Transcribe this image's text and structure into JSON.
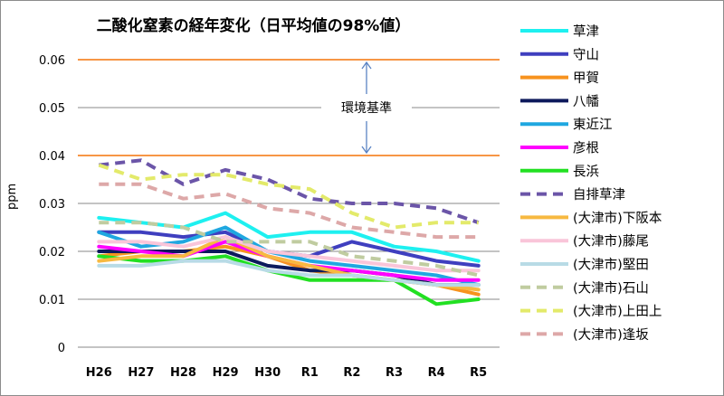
{
  "chart_data": {
    "type": "line",
    "title": "二酸化窒素の経年変化（日平均値の98%値）",
    "ylabel": "ppm",
    "ylim": [
      0,
      0.06
    ],
    "yticks": [
      "0",
      "0.01",
      "0.02",
      "0.03",
      "0.04",
      "0.05",
      "0.06"
    ],
    "ytick_values": [
      0,
      0.01,
      0.02,
      0.03,
      0.04,
      0.05,
      0.06
    ],
    "categories": [
      "H26",
      "H27",
      "H28",
      "H29",
      "H30",
      "R1",
      "R2",
      "R3",
      "R4",
      "R5"
    ],
    "grid": true,
    "legend": "right",
    "annotation": {
      "label": "環境基準",
      "range": [
        0.04,
        0.06
      ],
      "color": "#f79646"
    },
    "series": [
      {
        "name": "草津",
        "color": "#1ef0f0",
        "style": "solid",
        "values": [
          0.027,
          0.026,
          0.025,
          0.028,
          0.023,
          0.024,
          0.024,
          0.021,
          0.02,
          0.018
        ]
      },
      {
        "name": "守山",
        "color": "#3f3fbf",
        "style": "solid",
        "values": [
          0.024,
          0.024,
          0.023,
          0.024,
          0.02,
          0.019,
          0.022,
          0.02,
          0.018,
          0.017
        ]
      },
      {
        "name": "甲賀",
        "color": "#f7931e",
        "style": "solid",
        "values": [
          0.019,
          0.02,
          0.02,
          0.021,
          0.019,
          0.016,
          0.015,
          0.014,
          0.013,
          0.011
        ]
      },
      {
        "name": "八幡",
        "color": "#0d1a5c",
        "style": "solid",
        "values": [
          0.02,
          0.02,
          0.02,
          0.02,
          0.017,
          0.016,
          0.016,
          0.015,
          0.013,
          0.013
        ]
      },
      {
        "name": "東近江",
        "color": "#1fa7e0",
        "style": "solid",
        "values": [
          0.024,
          0.021,
          0.022,
          0.025,
          0.02,
          0.018,
          0.017,
          0.016,
          0.015,
          0.013
        ]
      },
      {
        "name": "彦根",
        "color": "#ff00ff",
        "style": "solid",
        "values": [
          0.021,
          0.02,
          0.019,
          0.022,
          0.019,
          0.017,
          0.016,
          0.015,
          0.014,
          0.014
        ]
      },
      {
        "name": "長浜",
        "color": "#22e022",
        "style": "solid",
        "values": [
          0.019,
          0.018,
          0.018,
          0.019,
          0.016,
          0.014,
          0.014,
          0.014,
          0.009,
          0.01
        ]
      },
      {
        "name": "自排草津",
        "color": "#6b55a8",
        "style": "dash",
        "values": [
          0.038,
          0.039,
          0.034,
          0.037,
          0.035,
          0.031,
          0.03,
          0.03,
          0.029,
          0.026
        ]
      },
      {
        "name": "(大津市)下阪本",
        "color": "#f7b940",
        "style": "solid",
        "values": [
          0.018,
          0.019,
          0.019,
          0.023,
          0.019,
          0.017,
          0.015,
          0.014,
          0.013,
          0.012
        ]
      },
      {
        "name": "(大津市)藤尾",
        "color": "#f9c5d9",
        "style": "solid",
        "values": [
          0.022,
          0.022,
          0.021,
          0.023,
          0.02,
          0.019,
          0.018,
          0.017,
          0.016,
          0.016
        ]
      },
      {
        "name": "(大津市)堅田",
        "color": "#b8dbe6",
        "style": "solid",
        "values": [
          0.017,
          0.017,
          0.018,
          0.018,
          0.016,
          0.015,
          0.015,
          0.014,
          0.013,
          0.013
        ]
      },
      {
        "name": "(大津市)石山",
        "color": "#c0cca0",
        "style": "dash",
        "values": [
          0.026,
          0.026,
          0.025,
          0.022,
          0.022,
          0.022,
          0.019,
          0.018,
          0.017,
          0.015
        ]
      },
      {
        "name": "(大津市)上田上",
        "color": "#e3ea6a",
        "style": "dash",
        "values": [
          0.038,
          0.035,
          0.036,
          0.036,
          0.034,
          0.033,
          0.028,
          0.025,
          0.026,
          0.026
        ]
      },
      {
        "name": "(大津市)逢坂",
        "color": "#dda8a8",
        "style": "dash",
        "values": [
          0.034,
          0.034,
          0.031,
          0.032,
          0.029,
          0.028,
          0.025,
          0.024,
          0.023,
          0.023
        ]
      }
    ]
  }
}
